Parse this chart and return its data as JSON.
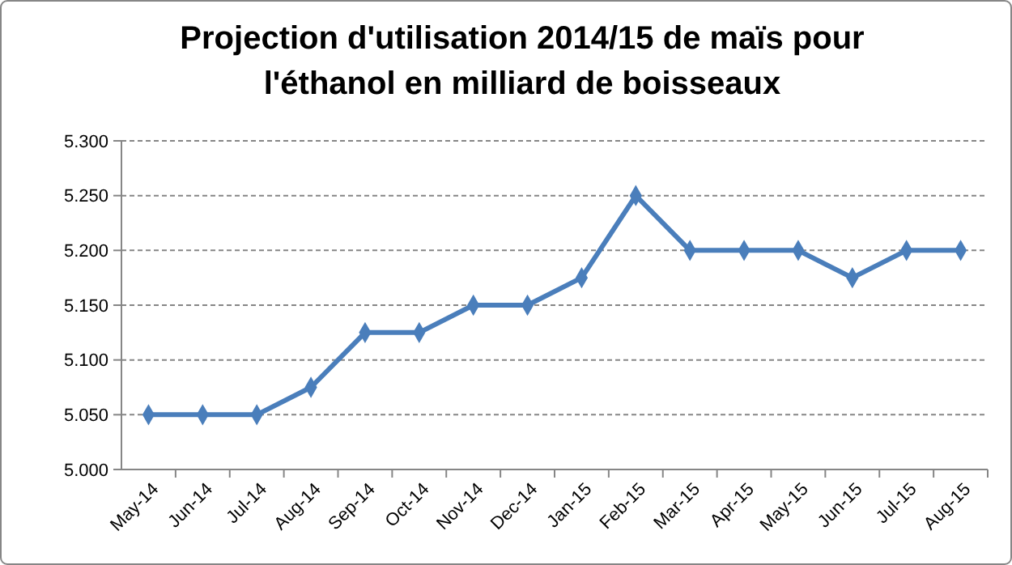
{
  "chart_data": {
    "type": "line",
    "title": "Projection d'utilisation 2014/15 de maïs pour\nl'éthanol en milliard de boisseaux",
    "categories": [
      "May-14",
      "Jun-14",
      "Jul-14",
      "Aug-14",
      "Sep-14",
      "Oct-14",
      "Nov-14",
      "Dec-14",
      "Jan-15",
      "Feb-15",
      "Mar-15",
      "Apr-15",
      "May-15",
      "Jun-15",
      "Jul-15",
      "Aug-15"
    ],
    "series": [
      {
        "color": "#4a7ebb",
        "values": [
          5.05,
          5.05,
          5.05,
          5.075,
          5.125,
          5.125,
          5.15,
          5.15,
          5.175,
          5.25,
          5.2,
          5.2,
          5.2,
          5.175,
          5.2,
          5.2
        ]
      }
    ],
    "ylim": [
      5.0,
      5.3
    ],
    "yticks": [
      {
        "value": 5.0,
        "label": "5.000"
      },
      {
        "value": 5.05,
        "label": "5.050"
      },
      {
        "value": 5.1,
        "label": "5.100"
      },
      {
        "value": 5.15,
        "label": "5.150"
      },
      {
        "value": 5.2,
        "label": "5.200"
      },
      {
        "value": 5.25,
        "label": "5.250"
      },
      {
        "value": 5.3,
        "label": "5.300"
      }
    ],
    "grid": "y",
    "marker": "diamond",
    "line_style": "solid"
  }
}
